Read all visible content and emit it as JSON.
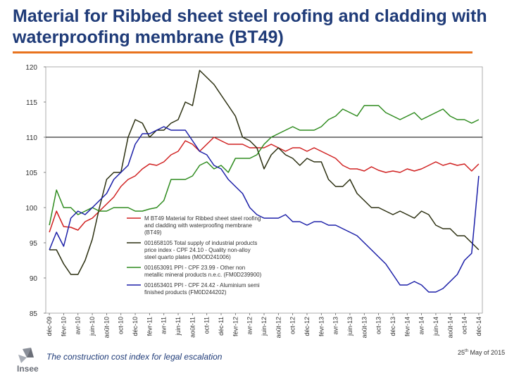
{
  "title": "Material for Ribbed sheet steel roofing and cladding with waterproofing membrane (BT49)",
  "footer": {
    "text": "The construction cost index for legal escalation",
    "date_day": "25",
    "date_suffix": "th",
    "date_rest": "May of 2015",
    "logo_text": "Insee"
  },
  "colors": {
    "accent": "#e8731e",
    "title": "#1f3b78",
    "bt49": "#d02020",
    "steel": "#2b2f10",
    "mineral": "#2e8b1e",
    "aluminium": "#1b1fa8"
  },
  "chart_data": {
    "type": "line",
    "title": "",
    "xlabel": "",
    "ylabel": "",
    "ylim": [
      85,
      120
    ],
    "yticks": [
      85,
      90,
      95,
      100,
      105,
      110,
      115,
      120
    ],
    "reference_line": 110,
    "x_tick_labels": [
      "déc-09",
      "févr-10",
      "avr-10",
      "juin-10",
      "août-10",
      "oct-10",
      "déc-10",
      "févr-11",
      "avr-11",
      "juin-11",
      "août-11",
      "oct-11",
      "déc-11",
      "févr-12",
      "avr-12",
      "juin-12",
      "août-12",
      "oct-12",
      "déc-12",
      "févr-13",
      "avr-13",
      "juin-13",
      "août-13",
      "oct-13",
      "déc-13",
      "févr-14",
      "avr-14",
      "juin-14",
      "août-14",
      "oct-14",
      "déc-14"
    ],
    "n_months": 61,
    "series": [
      {
        "name": "M BT49 Material for Ribbed sheet steel roofing and cladding with waterproofing membrane (BT49)",
        "color_key": "bt49",
        "points": [
          [
            0,
            96.5
          ],
          [
            1,
            99.5
          ],
          [
            2,
            97.3
          ],
          [
            3,
            97.2
          ],
          [
            4,
            96.8
          ],
          [
            5,
            98
          ],
          [
            6,
            98.5
          ],
          [
            7,
            99.5
          ],
          [
            8,
            100.5
          ],
          [
            9,
            101.5
          ],
          [
            10,
            103
          ],
          [
            11,
            104
          ],
          [
            12,
            104.5
          ],
          [
            13,
            105.5
          ],
          [
            14,
            106.2
          ],
          [
            15,
            106
          ],
          [
            16,
            106.5
          ],
          [
            17,
            107.5
          ],
          [
            18,
            108
          ],
          [
            19,
            109.5
          ],
          [
            20,
            109
          ],
          [
            21,
            108
          ],
          [
            22,
            109
          ],
          [
            23,
            110
          ],
          [
            24,
            109.5
          ],
          [
            25,
            109
          ],
          [
            26,
            109
          ],
          [
            27,
            109
          ],
          [
            28,
            108.5
          ],
          [
            29,
            108.5
          ],
          [
            30,
            108.5
          ],
          [
            31,
            109
          ],
          [
            32,
            108.5
          ],
          [
            33,
            108
          ],
          [
            34,
            108.5
          ],
          [
            35,
            108.5
          ],
          [
            36,
            108
          ],
          [
            37,
            108.5
          ],
          [
            38,
            108
          ],
          [
            39,
            107.5
          ],
          [
            40,
            107
          ],
          [
            41,
            106
          ],
          [
            42,
            105.5
          ],
          [
            43,
            105.5
          ],
          [
            44,
            105.2
          ],
          [
            45,
            105.8
          ],
          [
            46,
            105.3
          ],
          [
            47,
            105
          ],
          [
            48,
            105.2
          ],
          [
            49,
            105
          ],
          [
            50,
            105.5
          ],
          [
            51,
            105.2
          ],
          [
            52,
            105.5
          ],
          [
            53,
            106
          ],
          [
            54,
            106.5
          ],
          [
            55,
            106
          ],
          [
            56,
            106.3
          ],
          [
            57,
            106
          ],
          [
            58,
            106.2
          ],
          [
            59,
            105.2
          ],
          [
            60,
            106.2
          ]
        ]
      },
      {
        "name": "001658105 Total supply of industrial products price index - CPF 24.10 - Quality non-alloy steel quarto plates (M0OD241006)",
        "color_key": "steel",
        "points": [
          [
            0,
            94
          ],
          [
            1,
            94
          ],
          [
            2,
            92
          ],
          [
            3,
            90.5
          ],
          [
            4,
            90.5
          ],
          [
            5,
            92.5
          ],
          [
            6,
            95.5
          ],
          [
            7,
            100
          ],
          [
            8,
            104
          ],
          [
            9,
            105
          ],
          [
            10,
            105
          ],
          [
            11,
            110
          ],
          [
            12,
            112.5
          ],
          [
            13,
            112
          ],
          [
            14,
            110
          ],
          [
            15,
            111
          ],
          [
            16,
            111
          ],
          [
            17,
            112
          ],
          [
            18,
            112.5
          ],
          [
            19,
            115
          ],
          [
            20,
            114.5
          ],
          [
            21,
            119.5
          ],
          [
            22,
            118.5
          ],
          [
            23,
            117.5
          ],
          [
            24,
            116
          ],
          [
            25,
            114.5
          ],
          [
            26,
            113
          ],
          [
            27,
            110
          ],
          [
            28,
            109.5
          ],
          [
            29,
            108.5
          ],
          [
            30,
            105.5
          ],
          [
            31,
            107.5
          ],
          [
            32,
            108.5
          ],
          [
            33,
            107.5
          ],
          [
            34,
            107
          ],
          [
            35,
            106
          ],
          [
            36,
            107
          ],
          [
            37,
            106.5
          ],
          [
            38,
            106.5
          ],
          [
            39,
            104
          ],
          [
            40,
            103
          ],
          [
            41,
            103
          ],
          [
            42,
            104
          ],
          [
            43,
            102
          ],
          [
            44,
            101
          ],
          [
            45,
            100
          ],
          [
            46,
            100
          ],
          [
            47,
            99.5
          ],
          [
            48,
            99
          ],
          [
            49,
            99.5
          ],
          [
            50,
            99
          ],
          [
            51,
            98.5
          ],
          [
            52,
            99.5
          ],
          [
            53,
            99
          ],
          [
            54,
            97.5
          ],
          [
            55,
            97
          ],
          [
            56,
            97
          ],
          [
            57,
            96
          ],
          [
            58,
            96
          ],
          [
            59,
            95
          ],
          [
            60,
            94
          ]
        ]
      },
      {
        "name": "001653091 PPI - CPF 23.99 - Other non metallic mineral products n.e.c. (FM0D239900)",
        "color_key": "mineral",
        "points": [
          [
            0,
            97.5
          ],
          [
            1,
            102.5
          ],
          [
            2,
            100
          ],
          [
            3,
            100
          ],
          [
            4,
            99
          ],
          [
            5,
            99.5
          ],
          [
            6,
            100
          ],
          [
            7,
            99.5
          ],
          [
            8,
            99.5
          ],
          [
            9,
            100
          ],
          [
            10,
            100
          ],
          [
            11,
            100
          ],
          [
            12,
            99.5
          ],
          [
            13,
            99.5
          ],
          [
            14,
            99.8
          ],
          [
            15,
            100
          ],
          [
            16,
            101
          ],
          [
            17,
            104
          ],
          [
            18,
            104
          ],
          [
            19,
            104
          ],
          [
            20,
            104.5
          ],
          [
            21,
            106
          ],
          [
            22,
            106.5
          ],
          [
            23,
            105.5
          ],
          [
            24,
            106
          ],
          [
            25,
            105
          ],
          [
            26,
            107
          ],
          [
            27,
            107
          ],
          [
            28,
            107
          ],
          [
            29,
            107.5
          ],
          [
            30,
            109
          ],
          [
            31,
            110
          ],
          [
            32,
            110.5
          ],
          [
            33,
            111
          ],
          [
            34,
            111.5
          ],
          [
            35,
            111
          ],
          [
            36,
            111
          ],
          [
            37,
            111
          ],
          [
            38,
            111.5
          ],
          [
            39,
            112.5
          ],
          [
            40,
            113
          ],
          [
            41,
            114
          ],
          [
            42,
            113.5
          ],
          [
            43,
            113
          ],
          [
            44,
            114.5
          ],
          [
            45,
            114.5
          ],
          [
            46,
            114.5
          ],
          [
            47,
            113.5
          ],
          [
            48,
            113
          ],
          [
            49,
            112.5
          ],
          [
            50,
            113
          ],
          [
            51,
            113.5
          ],
          [
            52,
            112.5
          ],
          [
            53,
            113
          ],
          [
            54,
            113.5
          ],
          [
            55,
            114
          ],
          [
            56,
            113
          ],
          [
            57,
            112.5
          ],
          [
            58,
            112.5
          ],
          [
            59,
            112
          ],
          [
            60,
            112.5
          ]
        ]
      },
      {
        "name": "001653401 PPI - CPF 24.42 - Aluminium semi finished products (FM0D244202)",
        "color_key": "aluminium",
        "points": [
          [
            0,
            94
          ],
          [
            1,
            96.5
          ],
          [
            2,
            94.5
          ],
          [
            3,
            98.5
          ],
          [
            4,
            99.5
          ],
          [
            5,
            99
          ],
          [
            6,
            100
          ],
          [
            7,
            101
          ],
          [
            8,
            102
          ],
          [
            9,
            104
          ],
          [
            10,
            105
          ],
          [
            11,
            106
          ],
          [
            12,
            109
          ],
          [
            13,
            110.5
          ],
          [
            14,
            110.5
          ],
          [
            15,
            111
          ],
          [
            16,
            111.5
          ],
          [
            17,
            111
          ],
          [
            18,
            111
          ],
          [
            19,
            111
          ],
          [
            20,
            109.5
          ],
          [
            21,
            108
          ],
          [
            22,
            107.5
          ],
          [
            23,
            106
          ],
          [
            24,
            105.5
          ],
          [
            25,
            104
          ],
          [
            26,
            103
          ],
          [
            27,
            102
          ],
          [
            28,
            100
          ],
          [
            29,
            99
          ],
          [
            30,
            98.5
          ],
          [
            31,
            98.5
          ],
          [
            32,
            98.5
          ],
          [
            33,
            99
          ],
          [
            34,
            98
          ],
          [
            35,
            98
          ],
          [
            36,
            97.5
          ],
          [
            37,
            98
          ],
          [
            38,
            98
          ],
          [
            39,
            97.5
          ],
          [
            40,
            97.5
          ],
          [
            41,
            97
          ],
          [
            42,
            96.5
          ],
          [
            43,
            96
          ],
          [
            44,
            95
          ],
          [
            45,
            94
          ],
          [
            46,
            93
          ],
          [
            47,
            92
          ],
          [
            48,
            90.5
          ],
          [
            49,
            89
          ],
          [
            50,
            89
          ],
          [
            51,
            89.5
          ],
          [
            52,
            89
          ],
          [
            53,
            88
          ],
          [
            54,
            88
          ],
          [
            55,
            88.5
          ],
          [
            56,
            89.5
          ],
          [
            57,
            90.5
          ],
          [
            58,
            92.5
          ],
          [
            59,
            93.5
          ],
          [
            60,
            104.5
          ]
        ]
      }
    ],
    "legend": [
      {
        "lines": [
          "M BT49 Material for Ribbed sheet steel roofing",
          "and cladding with waterproofing membrane",
          "(BT49)"
        ],
        "color_key": "bt49"
      },
      {
        "lines": [
          "001658105 Total supply of industrial products",
          "price index - CPF 24.10 - Quality non-alloy",
          "steel quarto plates (M0OD241006)"
        ],
        "color_key": "steel"
      },
      {
        "lines": [
          "001653091 PPI - CPF 23.99 - Other non",
          "metallic mineral products n.e.c. (FM0D239900)"
        ],
        "color_key": "mineral"
      },
      {
        "lines": [
          "001653401 PPI - CPF 24.42 - Aluminium semi",
          "finished products (FM0D244202)"
        ],
        "color_key": "aluminium"
      }
    ]
  }
}
